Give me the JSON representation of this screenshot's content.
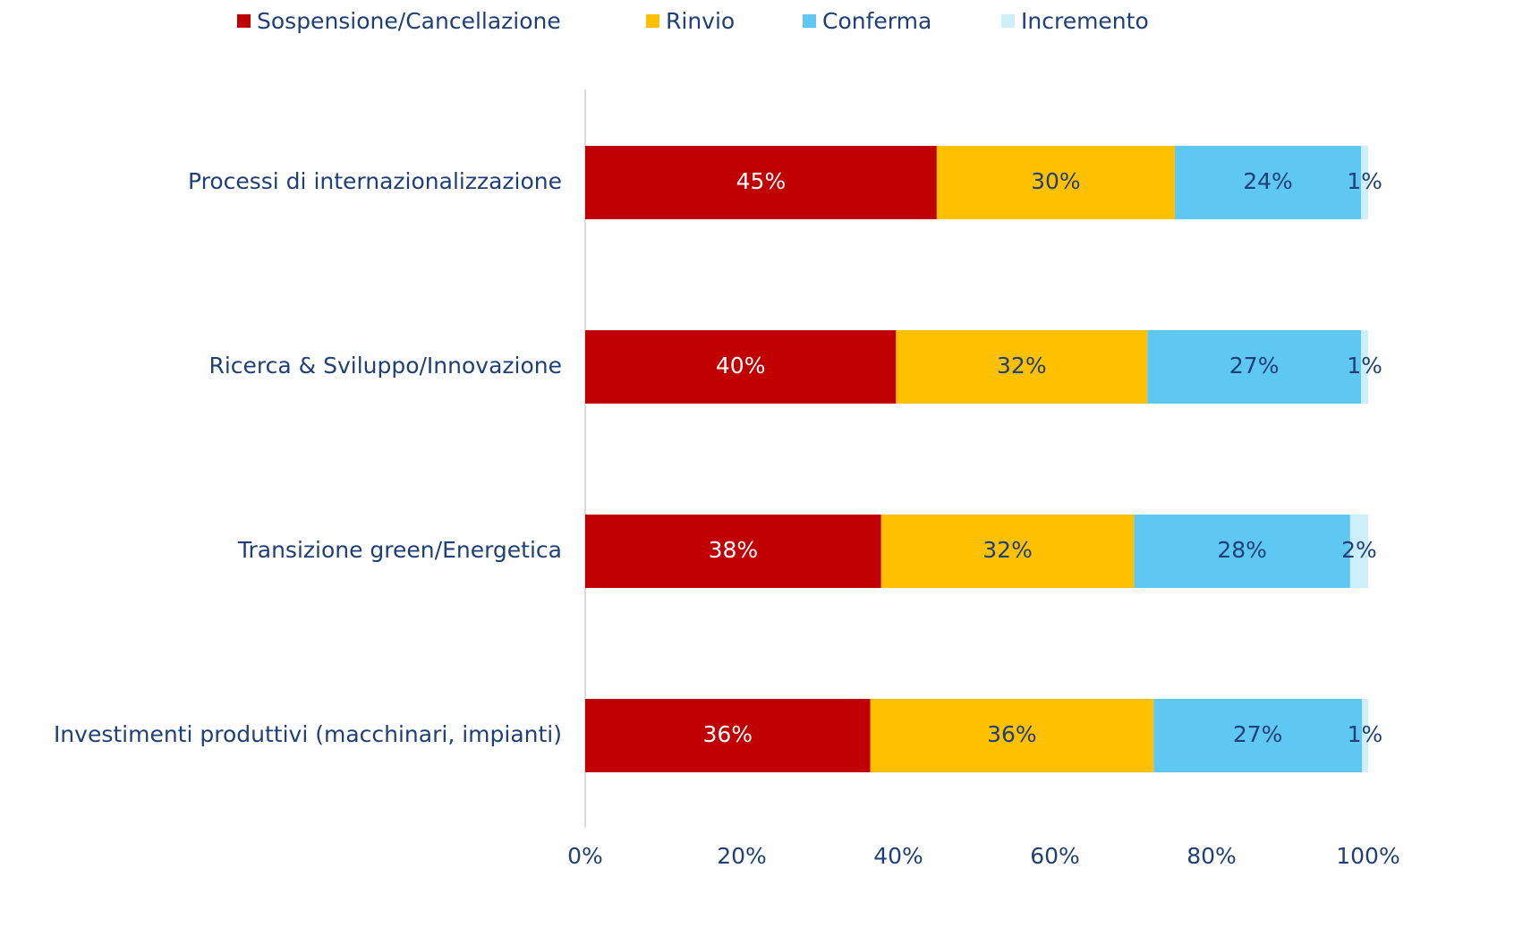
{
  "chart_data": {
    "type": "stacked-bar-horizontal",
    "categories": [
      "Processi di internazionalizzazione",
      "Ricerca & Sviluppo/Innovazione",
      "Transizione green/Energetica",
      "Investimenti produttivi (macchinari, impianti)"
    ],
    "series": [
      {
        "name": "Sospensione/Cancellazione",
        "color": "#c00000",
        "values": [
          44.9,
          39.7,
          37.8,
          36.4
        ],
        "value_labels": [
          "45%",
          "40%",
          "38%",
          "36%"
        ]
      },
      {
        "name": "Rinvio",
        "color": "#ffc000",
        "values": [
          30.4,
          32.1,
          32.3,
          36.2
        ],
        "value_labels": [
          "30%",
          "32%",
          "32%",
          "36%"
        ]
      },
      {
        "name": "Conferma",
        "color": "#5ec8f2",
        "values": [
          23.8,
          27.3,
          27.6,
          26.6
        ],
        "value_labels": [
          "24%",
          "27%",
          "28%",
          "27%"
        ]
      },
      {
        "name": "Incremento",
        "color": "#cdeefb",
        "values": [
          0.9,
          0.9,
          2.3,
          0.8
        ],
        "value_labels": [
          "1%",
          "1%",
          "2%",
          "1%"
        ]
      }
    ],
    "xlim": [
      0,
      100
    ],
    "xticks": [
      {
        "value": 0,
        "label": "0%"
      },
      {
        "value": 20,
        "label": "20%"
      },
      {
        "value": 40,
        "label": "40%"
      },
      {
        "value": 60,
        "label": "60%"
      },
      {
        "value": 80,
        "label": "80%"
      },
      {
        "value": 100,
        "label": "100%"
      }
    ],
    "legend": "top"
  }
}
